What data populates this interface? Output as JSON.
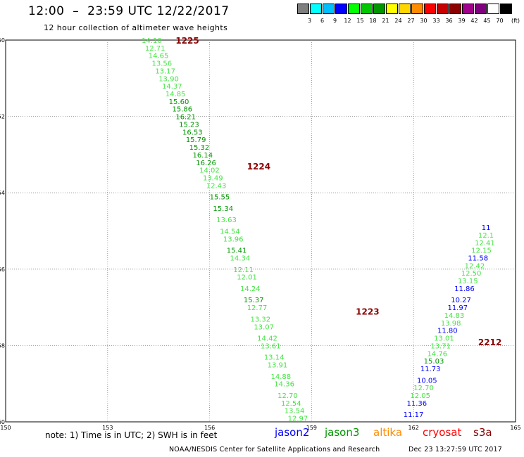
{
  "header": {
    "title": "12:00  –  23:59 UTC 12/22/2017",
    "subtitle": "12 hour collection of altimeter wave heights"
  },
  "colorbar": {
    "swatches": [
      {
        "color": "#7f7f7f",
        "label": "3"
      },
      {
        "color": "#00ffff",
        "label": "6"
      },
      {
        "color": "#00bfff",
        "label": "9"
      },
      {
        "color": "#0000ff",
        "label": "12"
      },
      {
        "color": "#00ff00",
        "label": "15"
      },
      {
        "color": "#00c800",
        "label": "18"
      },
      {
        "color": "#009600",
        "label": "21"
      },
      {
        "color": "#ffff00",
        "label": "24"
      },
      {
        "color": "#ffd700",
        "label": "27"
      },
      {
        "color": "#ff8c00",
        "label": "30"
      },
      {
        "color": "#ff0000",
        "label": "33"
      },
      {
        "color": "#c80000",
        "label": "36"
      },
      {
        "color": "#8b0000",
        "label": "39"
      },
      {
        "color": "#a0008c",
        "label": "42"
      },
      {
        "color": "#800080",
        "label": "45"
      },
      {
        "color": "#ffffff",
        "label": "70"
      },
      {
        "color": "#000000",
        "label": ""
      }
    ],
    "unit": "(ft)"
  },
  "chart_data": {
    "type": "scatter",
    "xlim": [
      150,
      165
    ],
    "ylim": [
      -60,
      -50
    ],
    "x_ticks": [
      "150",
      "153",
      "156",
      "159",
      "162",
      "165"
    ],
    "y_ticks": [
      "-50",
      "-52",
      "-54",
      "-56",
      "-58",
      "-60"
    ],
    "grid": true,
    "colors": {
      "light": "#44e444",
      "dark": "#009600",
      "blue": "#0000ff",
      "label": "#8b0000",
      "grid": "#888888"
    },
    "labels": [
      {
        "text": "1225",
        "x": 155.0,
        "y": -50.0
      },
      {
        "text": "1224",
        "x": 157.1,
        "y": -53.3
      },
      {
        "text": "1223",
        "x": 160.3,
        "y": -57.1
      },
      {
        "text": "2212",
        "x": 163.9,
        "y": -57.9
      }
    ],
    "track1": [
      {
        "v": "14.10",
        "x": 154.0,
        "y": -50.0,
        "c": "light"
      },
      {
        "v": "12.71",
        "x": 154.1,
        "y": -50.2,
        "c": "light"
      },
      {
        "v": "14.65",
        "x": 154.2,
        "y": -50.4,
        "c": "light"
      },
      {
        "v": "13.56",
        "x": 154.3,
        "y": -50.6,
        "c": "light"
      },
      {
        "v": "13.17",
        "x": 154.4,
        "y": -50.8,
        "c": "light"
      },
      {
        "v": "13.90",
        "x": 154.5,
        "y": -51.0,
        "c": "light"
      },
      {
        "v": "14.37",
        "x": 154.6,
        "y": -51.2,
        "c": "light"
      },
      {
        "v": "14.85",
        "x": 154.7,
        "y": -51.4,
        "c": "light"
      },
      {
        "v": "15.60",
        "x": 154.8,
        "y": -51.6,
        "c": "dark"
      },
      {
        "v": "15.86",
        "x": 154.9,
        "y": -51.8,
        "c": "dark"
      },
      {
        "v": "16.21",
        "x": 155.0,
        "y": -52.0,
        "c": "dark"
      },
      {
        "v": "15.23",
        "x": 155.1,
        "y": -52.2,
        "c": "dark"
      },
      {
        "v": "16.53",
        "x": 155.2,
        "y": -52.4,
        "c": "dark"
      },
      {
        "v": "15.79",
        "x": 155.3,
        "y": -52.6,
        "c": "dark"
      },
      {
        "v": "15.32",
        "x": 155.4,
        "y": -52.8,
        "c": "dark"
      },
      {
        "v": "16.14",
        "x": 155.5,
        "y": -53.0,
        "c": "dark"
      },
      {
        "v": "16.26",
        "x": 155.6,
        "y": -53.2,
        "c": "dark"
      },
      {
        "v": "14.02",
        "x": 155.7,
        "y": -53.4,
        "c": "light"
      },
      {
        "v": "13.49",
        "x": 155.8,
        "y": -53.6,
        "c": "light"
      },
      {
        "v": "12.43",
        "x": 155.9,
        "y": -53.8,
        "c": "light"
      },
      {
        "v": "15.55",
        "x": 156.0,
        "y": -54.1,
        "c": "dark"
      },
      {
        "v": "15.34",
        "x": 156.1,
        "y": -54.4,
        "c": "dark"
      },
      {
        "v": "13.63",
        "x": 156.2,
        "y": -54.7,
        "c": "light"
      },
      {
        "v": "14.54",
        "x": 156.3,
        "y": -55.0,
        "c": "light"
      },
      {
        "v": "13.96",
        "x": 156.4,
        "y": -55.2,
        "c": "light"
      },
      {
        "v": "15.41",
        "x": 156.5,
        "y": -55.5,
        "c": "dark"
      },
      {
        "v": "14.34",
        "x": 156.6,
        "y": -55.7,
        "c": "light"
      },
      {
        "v": "12.11",
        "x": 156.7,
        "y": -56.0,
        "c": "light"
      },
      {
        "v": "12.01",
        "x": 156.8,
        "y": -56.2,
        "c": "light"
      },
      {
        "v": "14.24",
        "x": 156.9,
        "y": -56.5,
        "c": "light"
      },
      {
        "v": "15.37",
        "x": 157.0,
        "y": -56.8,
        "c": "dark"
      },
      {
        "v": "12.77",
        "x": 157.1,
        "y": -57.0,
        "c": "light"
      },
      {
        "v": "13.32",
        "x": 157.2,
        "y": -57.3,
        "c": "light"
      },
      {
        "v": "13.07",
        "x": 157.3,
        "y": -57.5,
        "c": "light"
      },
      {
        "v": "14.42",
        "x": 157.4,
        "y": -57.8,
        "c": "light"
      },
      {
        "v": "13.61",
        "x": 157.5,
        "y": -58.0,
        "c": "light"
      },
      {
        "v": "13.14",
        "x": 157.6,
        "y": -58.3,
        "c": "light"
      },
      {
        "v": "13.91",
        "x": 157.7,
        "y": -58.5,
        "c": "light"
      },
      {
        "v": "14.88",
        "x": 157.8,
        "y": -58.8,
        "c": "light"
      },
      {
        "v": "14.36",
        "x": 157.9,
        "y": -59.0,
        "c": "light"
      },
      {
        "v": "12.70",
        "x": 158.0,
        "y": -59.3,
        "c": "light"
      },
      {
        "v": "12.54",
        "x": 158.1,
        "y": -59.5,
        "c": "light"
      },
      {
        "v": "13.54",
        "x": 158.2,
        "y": -59.7,
        "c": "light"
      },
      {
        "v": "12.97",
        "x": 158.3,
        "y": -59.9,
        "c": "light"
      }
    ],
    "track2": [
      {
        "v": "11.17",
        "x": 161.7,
        "y": -59.8,
        "c": "blue"
      },
      {
        "v": "11.36",
        "x": 161.8,
        "y": -59.5,
        "c": "blue"
      },
      {
        "v": "12.05",
        "x": 161.9,
        "y": -59.3,
        "c": "light"
      },
      {
        "v": "12.70",
        "x": 162.0,
        "y": -59.1,
        "c": "light"
      },
      {
        "v": "10.05",
        "x": 162.1,
        "y": -58.9,
        "c": "blue"
      },
      {
        "v": "11.73",
        "x": 162.2,
        "y": -58.6,
        "c": "blue"
      },
      {
        "v": "15.03",
        "x": 162.3,
        "y": -58.4,
        "c": "dark"
      },
      {
        "v": "14.76",
        "x": 162.4,
        "y": -58.2,
        "c": "light"
      },
      {
        "v": "13.71",
        "x": 162.5,
        "y": -58.0,
        "c": "light"
      },
      {
        "v": "13.01",
        "x": 162.6,
        "y": -57.8,
        "c": "light"
      },
      {
        "v": "11.80",
        "x": 162.7,
        "y": -57.6,
        "c": "blue"
      },
      {
        "v": "13.98",
        "x": 162.8,
        "y": -57.4,
        "c": "light"
      },
      {
        "v": "14.83",
        "x": 162.9,
        "y": -57.2,
        "c": "light"
      },
      {
        "v": "11.97",
        "x": 163.0,
        "y": -57.0,
        "c": "blue"
      },
      {
        "v": "10.27",
        "x": 163.1,
        "y": -56.8,
        "c": "blue"
      },
      {
        "v": "11.86",
        "x": 163.2,
        "y": -56.5,
        "c": "blue"
      },
      {
        "v": "13.15",
        "x": 163.3,
        "y": -56.3,
        "c": "light"
      },
      {
        "v": "12.50",
        "x": 163.4,
        "y": -56.1,
        "c": "light"
      },
      {
        "v": "12.42",
        "x": 163.5,
        "y": -55.9,
        "c": "light"
      },
      {
        "v": "11.58",
        "x": 163.6,
        "y": -55.7,
        "c": "blue"
      },
      {
        "v": "12.15",
        "x": 163.7,
        "y": -55.5,
        "c": "light"
      },
      {
        "v": "12.41",
        "x": 163.8,
        "y": -55.3,
        "c": "light"
      },
      {
        "v": "12.1",
        "x": 163.9,
        "y": -55.1,
        "c": "light"
      },
      {
        "v": "11",
        "x": 164.0,
        "y": -54.9,
        "c": "blue"
      }
    ]
  },
  "footer": {
    "note": "note: 1) Time is in UTC; 2) SWH is in feet",
    "satellites": [
      {
        "name": "jason2",
        "color": "#0000ff"
      },
      {
        "name": "jason3",
        "color": "#009600"
      },
      {
        "name": "altika",
        "color": "#ff8c00"
      },
      {
        "name": "cryosat",
        "color": "#ff0000"
      },
      {
        "name": "s3a",
        "color": "#8b0000"
      }
    ],
    "credit": "NOAA/NESDIS Center for Satellite Applications and Research",
    "timestamp": "Dec 23 13:27:59 UTC 2017"
  }
}
